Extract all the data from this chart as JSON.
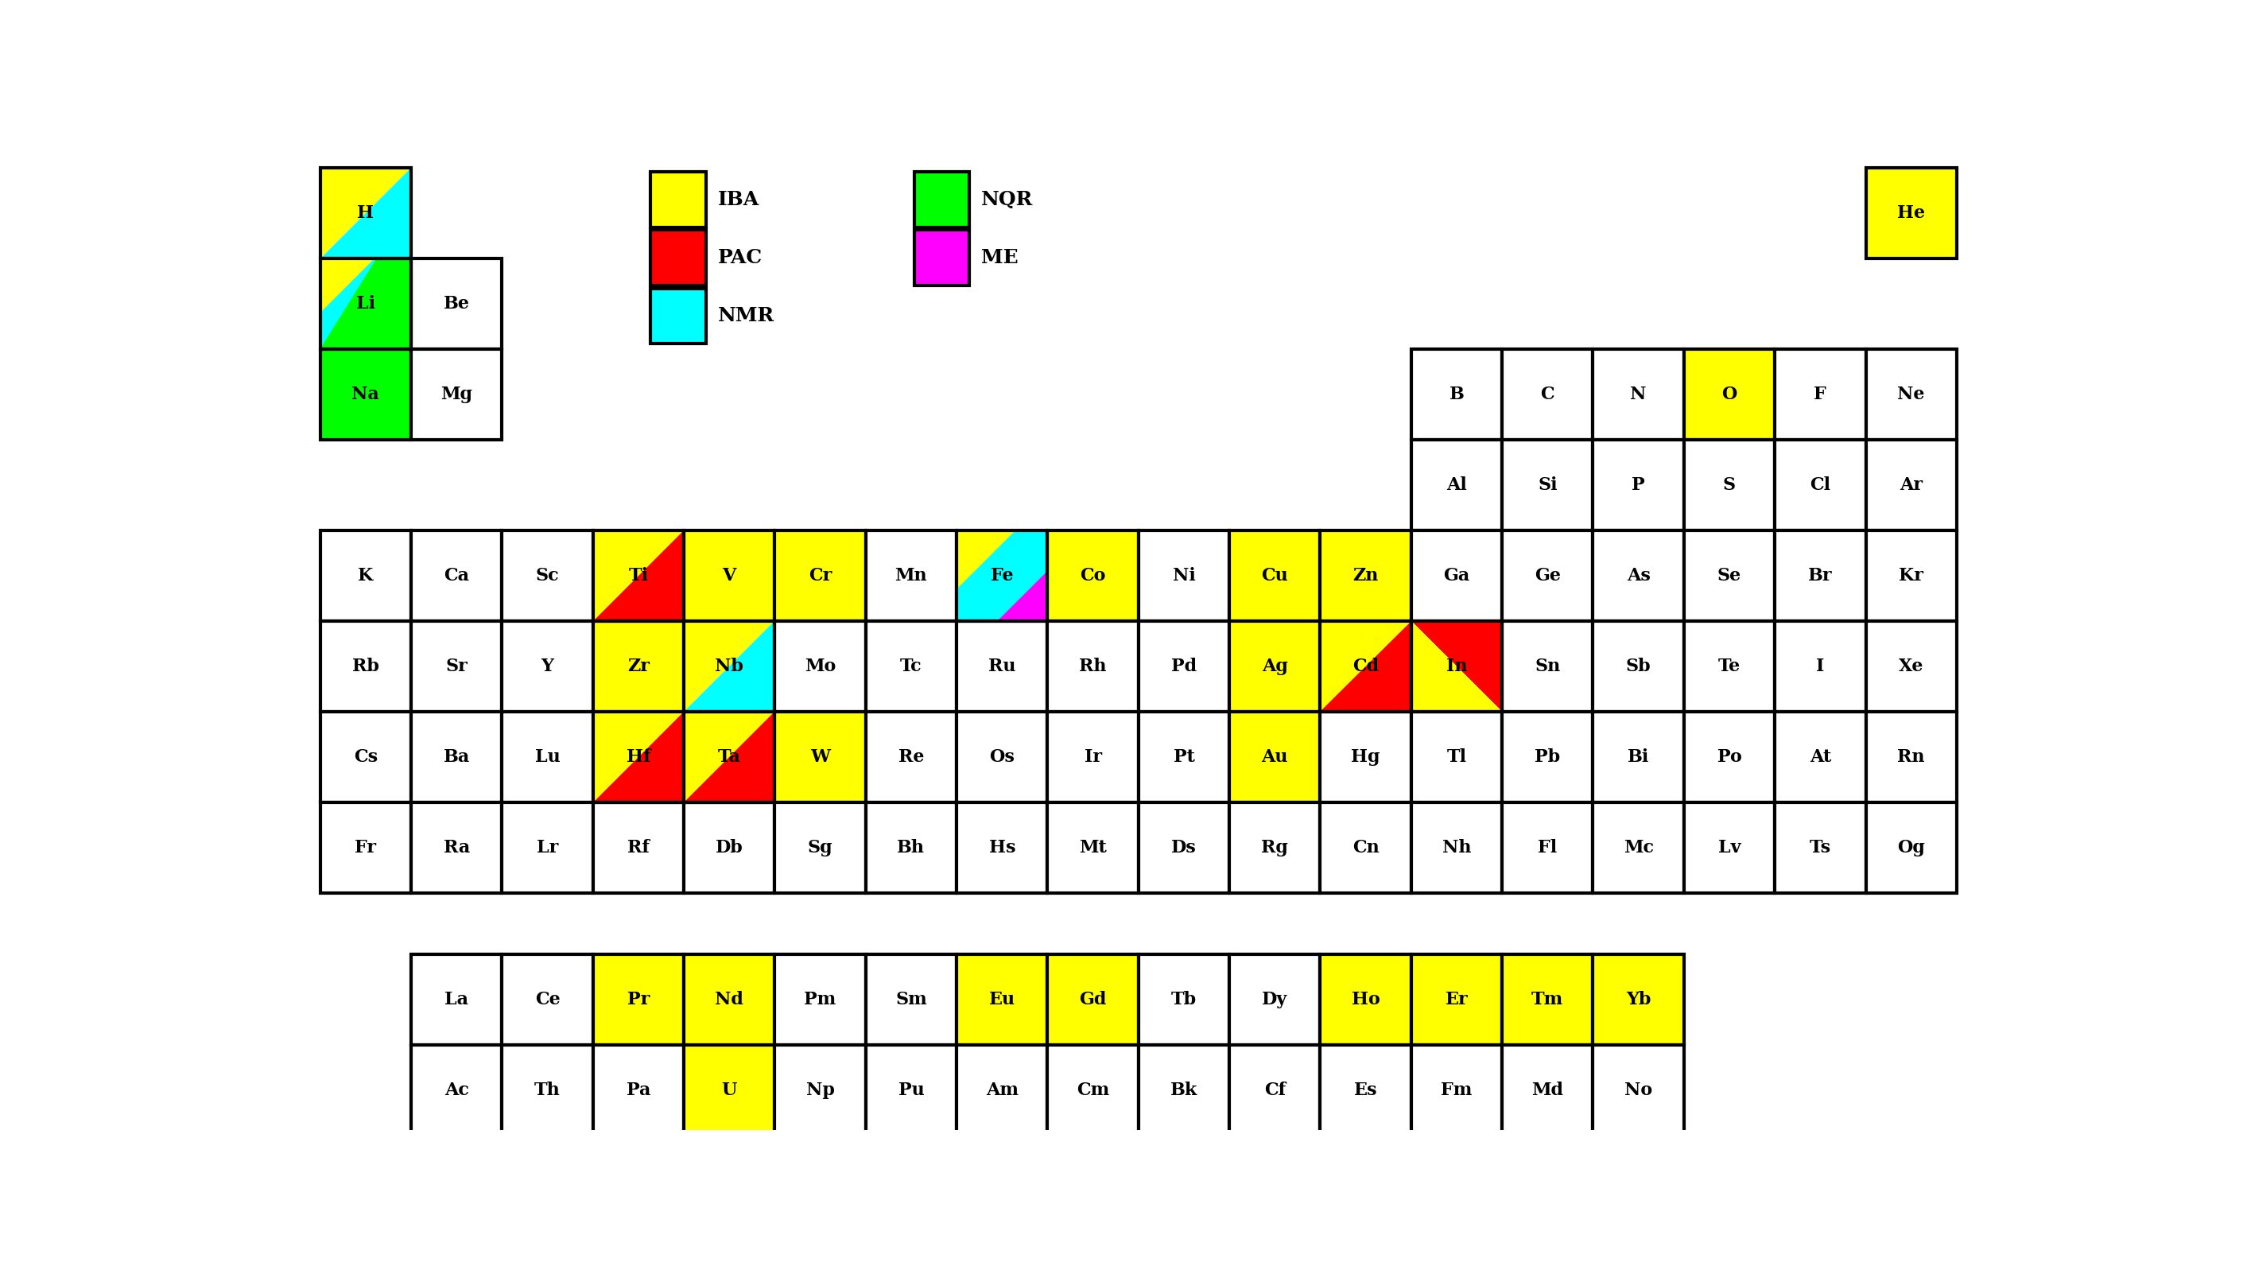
{
  "background_color": "#ffffff",
  "border_color": "#000000",
  "border_lw": 3.0,
  "font_size": 16,
  "legend_font_size": 18,
  "colors": {
    "yellow": "#ffff00",
    "red": "#ff0000",
    "cyan": "#00ffff",
    "green": "#00ff00",
    "magenta": "#ff00ff",
    "white": "#ffffff"
  },
  "elements": [
    {
      "symbol": "H",
      "row": 0,
      "col": 0,
      "colors": [
        "yellow",
        "cyan"
      ],
      "split": "diag_tl"
    },
    {
      "symbol": "He",
      "row": 0,
      "col": 17,
      "colors": [
        "yellow"
      ],
      "split": "solid"
    },
    {
      "symbol": "Li",
      "row": 1,
      "col": 0,
      "colors": [
        "yellow",
        "cyan",
        "green"
      ],
      "split": "tri_li"
    },
    {
      "symbol": "Be",
      "row": 1,
      "col": 1,
      "colors": [
        "white"
      ],
      "split": "solid"
    },
    {
      "symbol": "B",
      "row": 2,
      "col": 12,
      "colors": [
        "white"
      ],
      "split": "solid"
    },
    {
      "symbol": "C",
      "row": 2,
      "col": 13,
      "colors": [
        "white"
      ],
      "split": "solid"
    },
    {
      "symbol": "N",
      "row": 2,
      "col": 14,
      "colors": [
        "white"
      ],
      "split": "solid"
    },
    {
      "symbol": "O",
      "row": 2,
      "col": 15,
      "colors": [
        "yellow"
      ],
      "split": "solid"
    },
    {
      "symbol": "F",
      "row": 2,
      "col": 16,
      "colors": [
        "white"
      ],
      "split": "solid"
    },
    {
      "symbol": "Ne",
      "row": 2,
      "col": 17,
      "colors": [
        "white"
      ],
      "split": "solid"
    },
    {
      "symbol": "Na",
      "row": 2,
      "col": 0,
      "colors": [
        "green"
      ],
      "split": "solid"
    },
    {
      "symbol": "Mg",
      "row": 2,
      "col": 1,
      "colors": [
        "white"
      ],
      "split": "solid"
    },
    {
      "symbol": "Al",
      "row": 3,
      "col": 12,
      "colors": [
        "white"
      ],
      "split": "solid"
    },
    {
      "symbol": "Si",
      "row": 3,
      "col": 13,
      "colors": [
        "white"
      ],
      "split": "solid"
    },
    {
      "symbol": "P",
      "row": 3,
      "col": 14,
      "colors": [
        "white"
      ],
      "split": "solid"
    },
    {
      "symbol": "S",
      "row": 3,
      "col": 15,
      "colors": [
        "white"
      ],
      "split": "solid"
    },
    {
      "symbol": "Cl",
      "row": 3,
      "col": 16,
      "colors": [
        "white"
      ],
      "split": "solid"
    },
    {
      "symbol": "Ar",
      "row": 3,
      "col": 17,
      "colors": [
        "white"
      ],
      "split": "solid"
    },
    {
      "symbol": "K",
      "row": 4,
      "col": 0,
      "colors": [
        "white"
      ],
      "split": "solid"
    },
    {
      "symbol": "Ca",
      "row": 4,
      "col": 1,
      "colors": [
        "white"
      ],
      "split": "solid"
    },
    {
      "symbol": "Sc",
      "row": 4,
      "col": 2,
      "colors": [
        "white"
      ],
      "split": "solid"
    },
    {
      "symbol": "Ti",
      "row": 4,
      "col": 3,
      "colors": [
        "yellow",
        "red"
      ],
      "split": "diag_tl"
    },
    {
      "symbol": "V",
      "row": 4,
      "col": 4,
      "colors": [
        "yellow"
      ],
      "split": "solid"
    },
    {
      "symbol": "Cr",
      "row": 4,
      "col": 5,
      "colors": [
        "yellow"
      ],
      "split": "solid"
    },
    {
      "symbol": "Mn",
      "row": 4,
      "col": 6,
      "colors": [
        "white"
      ],
      "split": "solid"
    },
    {
      "symbol": "Fe",
      "row": 4,
      "col": 7,
      "colors": [
        "yellow",
        "cyan",
        "magenta"
      ],
      "split": "tri_fe"
    },
    {
      "symbol": "Co",
      "row": 4,
      "col": 8,
      "colors": [
        "yellow"
      ],
      "split": "solid"
    },
    {
      "symbol": "Ni",
      "row": 4,
      "col": 9,
      "colors": [
        "white"
      ],
      "split": "solid"
    },
    {
      "symbol": "Cu",
      "row": 4,
      "col": 10,
      "colors": [
        "yellow"
      ],
      "split": "solid"
    },
    {
      "symbol": "Zn",
      "row": 4,
      "col": 11,
      "colors": [
        "yellow"
      ],
      "split": "solid"
    },
    {
      "symbol": "Ga",
      "row": 4,
      "col": 12,
      "colors": [
        "white"
      ],
      "split": "solid"
    },
    {
      "symbol": "Ge",
      "row": 4,
      "col": 13,
      "colors": [
        "white"
      ],
      "split": "solid"
    },
    {
      "symbol": "As",
      "row": 4,
      "col": 14,
      "colors": [
        "white"
      ],
      "split": "solid"
    },
    {
      "symbol": "Se",
      "row": 4,
      "col": 15,
      "colors": [
        "white"
      ],
      "split": "solid"
    },
    {
      "symbol": "Br",
      "row": 4,
      "col": 16,
      "colors": [
        "white"
      ],
      "split": "solid"
    },
    {
      "symbol": "Kr",
      "row": 4,
      "col": 17,
      "colors": [
        "white"
      ],
      "split": "solid"
    },
    {
      "symbol": "Rb",
      "row": 5,
      "col": 0,
      "colors": [
        "white"
      ],
      "split": "solid"
    },
    {
      "symbol": "Sr",
      "row": 5,
      "col": 1,
      "colors": [
        "white"
      ],
      "split": "solid"
    },
    {
      "symbol": "Y",
      "row": 5,
      "col": 2,
      "colors": [
        "white"
      ],
      "split": "solid"
    },
    {
      "symbol": "Zr",
      "row": 5,
      "col": 3,
      "colors": [
        "yellow"
      ],
      "split": "solid"
    },
    {
      "symbol": "Nb",
      "row": 5,
      "col": 4,
      "colors": [
        "yellow",
        "cyan"
      ],
      "split": "diag_tl"
    },
    {
      "symbol": "Mo",
      "row": 5,
      "col": 5,
      "colors": [
        "white"
      ],
      "split": "solid"
    },
    {
      "symbol": "Tc",
      "row": 5,
      "col": 6,
      "colors": [
        "white"
      ],
      "split": "solid"
    },
    {
      "symbol": "Ru",
      "row": 5,
      "col": 7,
      "colors": [
        "white"
      ],
      "split": "solid"
    },
    {
      "symbol": "Rh",
      "row": 5,
      "col": 8,
      "colors": [
        "white"
      ],
      "split": "solid"
    },
    {
      "symbol": "Pd",
      "row": 5,
      "col": 9,
      "colors": [
        "white"
      ],
      "split": "solid"
    },
    {
      "symbol": "Ag",
      "row": 5,
      "col": 10,
      "colors": [
        "yellow"
      ],
      "split": "solid"
    },
    {
      "symbol": "Cd",
      "row": 5,
      "col": 11,
      "colors": [
        "yellow",
        "red"
      ],
      "split": "diag_tl"
    },
    {
      "symbol": "In",
      "row": 5,
      "col": 12,
      "colors": [
        "red",
        "yellow"
      ],
      "split": "diag_tr"
    },
    {
      "symbol": "Sn",
      "row": 5,
      "col": 13,
      "colors": [
        "white"
      ],
      "split": "solid"
    },
    {
      "symbol": "Sb",
      "row": 5,
      "col": 14,
      "colors": [
        "white"
      ],
      "split": "solid"
    },
    {
      "symbol": "Te",
      "row": 5,
      "col": 15,
      "colors": [
        "white"
      ],
      "split": "solid"
    },
    {
      "symbol": "I",
      "row": 5,
      "col": 16,
      "colors": [
        "white"
      ],
      "split": "solid"
    },
    {
      "symbol": "Xe",
      "row": 5,
      "col": 17,
      "colors": [
        "white"
      ],
      "split": "solid"
    },
    {
      "symbol": "Cs",
      "row": 6,
      "col": 0,
      "colors": [
        "white"
      ],
      "split": "solid"
    },
    {
      "symbol": "Ba",
      "row": 6,
      "col": 1,
      "colors": [
        "white"
      ],
      "split": "solid"
    },
    {
      "symbol": "Lu",
      "row": 6,
      "col": 2,
      "colors": [
        "white"
      ],
      "split": "solid"
    },
    {
      "symbol": "Hf",
      "row": 6,
      "col": 3,
      "colors": [
        "yellow",
        "red"
      ],
      "split": "diag_tl"
    },
    {
      "symbol": "Ta",
      "row": 6,
      "col": 4,
      "colors": [
        "yellow",
        "red"
      ],
      "split": "diag_tl"
    },
    {
      "symbol": "W",
      "row": 6,
      "col": 5,
      "colors": [
        "yellow"
      ],
      "split": "solid"
    },
    {
      "symbol": "Re",
      "row": 6,
      "col": 6,
      "colors": [
        "white"
      ],
      "split": "solid"
    },
    {
      "symbol": "Os",
      "row": 6,
      "col": 7,
      "colors": [
        "white"
      ],
      "split": "solid"
    },
    {
      "symbol": "Ir",
      "row": 6,
      "col": 8,
      "colors": [
        "white"
      ],
      "split": "solid"
    },
    {
      "symbol": "Pt",
      "row": 6,
      "col": 9,
      "colors": [
        "white"
      ],
      "split": "solid"
    },
    {
      "symbol": "Au",
      "row": 6,
      "col": 10,
      "colors": [
        "yellow"
      ],
      "split": "solid"
    },
    {
      "symbol": "Hg",
      "row": 6,
      "col": 11,
      "colors": [
        "white"
      ],
      "split": "solid"
    },
    {
      "symbol": "Tl",
      "row": 6,
      "col": 12,
      "colors": [
        "white"
      ],
      "split": "solid"
    },
    {
      "symbol": "Pb",
      "row": 6,
      "col": 13,
      "colors": [
        "white"
      ],
      "split": "solid"
    },
    {
      "symbol": "Bi",
      "row": 6,
      "col": 14,
      "colors": [
        "white"
      ],
      "split": "solid"
    },
    {
      "symbol": "Po",
      "row": 6,
      "col": 15,
      "colors": [
        "white"
      ],
      "split": "solid"
    },
    {
      "symbol": "At",
      "row": 6,
      "col": 16,
      "colors": [
        "white"
      ],
      "split": "solid"
    },
    {
      "symbol": "Rn",
      "row": 6,
      "col": 17,
      "colors": [
        "white"
      ],
      "split": "solid"
    },
    {
      "symbol": "Fr",
      "row": 7,
      "col": 0,
      "colors": [
        "white"
      ],
      "split": "solid"
    },
    {
      "symbol": "Ra",
      "row": 7,
      "col": 1,
      "colors": [
        "white"
      ],
      "split": "solid"
    },
    {
      "symbol": "Lr",
      "row": 7,
      "col": 2,
      "colors": [
        "white"
      ],
      "split": "solid"
    },
    {
      "symbol": "Rf",
      "row": 7,
      "col": 3,
      "colors": [
        "white"
      ],
      "split": "solid"
    },
    {
      "symbol": "Db",
      "row": 7,
      "col": 4,
      "colors": [
        "white"
      ],
      "split": "solid"
    },
    {
      "symbol": "Sg",
      "row": 7,
      "col": 5,
      "colors": [
        "white"
      ],
      "split": "solid"
    },
    {
      "symbol": "Bh",
      "row": 7,
      "col": 6,
      "colors": [
        "white"
      ],
      "split": "solid"
    },
    {
      "symbol": "Hs",
      "row": 7,
      "col": 7,
      "colors": [
        "white"
      ],
      "split": "solid"
    },
    {
      "symbol": "Mt",
      "row": 7,
      "col": 8,
      "colors": [
        "white"
      ],
      "split": "solid"
    },
    {
      "symbol": "Ds",
      "row": 7,
      "col": 9,
      "colors": [
        "white"
      ],
      "split": "solid"
    },
    {
      "symbol": "Rg",
      "row": 7,
      "col": 10,
      "colors": [
        "white"
      ],
      "split": "solid"
    },
    {
      "symbol": "Cn",
      "row": 7,
      "col": 11,
      "colors": [
        "white"
      ],
      "split": "solid"
    },
    {
      "symbol": "Nh",
      "row": 7,
      "col": 12,
      "colors": [
        "white"
      ],
      "split": "solid"
    },
    {
      "symbol": "Fl",
      "row": 7,
      "col": 13,
      "colors": [
        "white"
      ],
      "split": "solid"
    },
    {
      "symbol": "Mc",
      "row": 7,
      "col": 14,
      "colors": [
        "white"
      ],
      "split": "solid"
    },
    {
      "symbol": "Lv",
      "row": 7,
      "col": 15,
      "colors": [
        "white"
      ],
      "split": "solid"
    },
    {
      "symbol": "Ts",
      "row": 7,
      "col": 16,
      "colors": [
        "white"
      ],
      "split": "solid"
    },
    {
      "symbol": "Og",
      "row": 7,
      "col": 17,
      "colors": [
        "white"
      ],
      "split": "solid"
    },
    {
      "symbol": "La",
      "row": 10,
      "col": 2,
      "colors": [
        "white"
      ],
      "split": "solid"
    },
    {
      "symbol": "Ce",
      "row": 10,
      "col": 3,
      "colors": [
        "white"
      ],
      "split": "solid"
    },
    {
      "symbol": "Pr",
      "row": 10,
      "col": 4,
      "colors": [
        "yellow"
      ],
      "split": "solid"
    },
    {
      "symbol": "Nd",
      "row": 10,
      "col": 5,
      "colors": [
        "yellow"
      ],
      "split": "solid"
    },
    {
      "symbol": "Pm",
      "row": 10,
      "col": 6,
      "colors": [
        "white"
      ],
      "split": "solid"
    },
    {
      "symbol": "Sm",
      "row": 10,
      "col": 7,
      "colors": [
        "white"
      ],
      "split": "solid"
    },
    {
      "symbol": "Eu",
      "row": 10,
      "col": 8,
      "colors": [
        "yellow"
      ],
      "split": "solid"
    },
    {
      "symbol": "Gd",
      "row": 10,
      "col": 9,
      "colors": [
        "yellow"
      ],
      "split": "solid"
    },
    {
      "symbol": "Tb",
      "row": 10,
      "col": 10,
      "colors": [
        "white"
      ],
      "split": "solid"
    },
    {
      "symbol": "Dy",
      "row": 10,
      "col": 11,
      "colors": [
        "white"
      ],
      "split": "solid"
    },
    {
      "symbol": "Ho",
      "row": 10,
      "col": 12,
      "colors": [
        "yellow"
      ],
      "split": "solid"
    },
    {
      "symbol": "Er",
      "row": 10,
      "col": 13,
      "colors": [
        "yellow"
      ],
      "split": "solid"
    },
    {
      "symbol": "Tm",
      "row": 10,
      "col": 14,
      "colors": [
        "yellow"
      ],
      "split": "solid"
    },
    {
      "symbol": "Yb",
      "row": 10,
      "col": 15,
      "colors": [
        "yellow"
      ],
      "split": "solid"
    },
    {
      "symbol": "Ac",
      "row": 11,
      "col": 2,
      "colors": [
        "white"
      ],
      "split": "solid"
    },
    {
      "symbol": "Th",
      "row": 11,
      "col": 3,
      "colors": [
        "white"
      ],
      "split": "solid"
    },
    {
      "symbol": "Pa",
      "row": 11,
      "col": 4,
      "colors": [
        "white"
      ],
      "split": "solid"
    },
    {
      "symbol": "U",
      "row": 11,
      "col": 5,
      "colors": [
        "yellow"
      ],
      "split": "solid"
    },
    {
      "symbol": "Np",
      "row": 11,
      "col": 6,
      "colors": [
        "white"
      ],
      "split": "solid"
    },
    {
      "symbol": "Pu",
      "row": 11,
      "col": 7,
      "colors": [
        "white"
      ],
      "split": "solid"
    },
    {
      "symbol": "Am",
      "row": 11,
      "col": 8,
      "colors": [
        "white"
      ],
      "split": "solid"
    },
    {
      "symbol": "Cm",
      "row": 11,
      "col": 9,
      "colors": [
        "white"
      ],
      "split": "solid"
    },
    {
      "symbol": "Bk",
      "row": 11,
      "col": 10,
      "colors": [
        "white"
      ],
      "split": "solid"
    },
    {
      "symbol": "Cf",
      "row": 11,
      "col": 11,
      "colors": [
        "white"
      ],
      "split": "solid"
    },
    {
      "symbol": "Es",
      "row": 11,
      "col": 12,
      "colors": [
        "white"
      ],
      "split": "solid"
    },
    {
      "symbol": "Fm",
      "row": 11,
      "col": 13,
      "colors": [
        "white"
      ],
      "split": "solid"
    },
    {
      "symbol": "Md",
      "row": 11,
      "col": 14,
      "colors": [
        "white"
      ],
      "split": "solid"
    },
    {
      "symbol": "No",
      "row": 11,
      "col": 15,
      "colors": [
        "white"
      ],
      "split": "solid"
    }
  ],
  "legend_col1": [
    {
      "color": "yellow",
      "label": "IBA"
    },
    {
      "color": "red",
      "label": "PAC"
    },
    {
      "color": "cyan",
      "label": "NMR"
    }
  ],
  "legend_col2": [
    {
      "color": "green",
      "label": "NQR"
    },
    {
      "color": "magenta",
      "label": "ME"
    }
  ]
}
